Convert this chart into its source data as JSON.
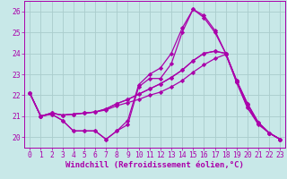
{
  "bg_color": "#c8e8e8",
  "grid_color": "#aacccc",
  "line_color": "#aa00aa",
  "marker": "D",
  "markersize": 2.2,
  "linewidth": 0.9,
  "xlabel": "Windchill (Refroidissement éolien,°C)",
  "xlabel_fontsize": 6.5,
  "tick_fontsize": 5.8,
  "xlim": [
    -0.5,
    23.5
  ],
  "ylim": [
    19.5,
    26.5
  ],
  "yticks": [
    20,
    21,
    22,
    23,
    24,
    25,
    26
  ],
  "xticks": [
    0,
    1,
    2,
    3,
    4,
    5,
    6,
    7,
    8,
    9,
    10,
    11,
    12,
    13,
    14,
    15,
    16,
    17,
    18,
    19,
    20,
    21,
    22,
    23
  ],
  "series": [
    [
      22.1,
      21.0,
      21.1,
      20.8,
      20.3,
      20.3,
      20.3,
      19.9,
      20.3,
      20.6,
      22.4,
      22.8,
      22.8,
      23.5,
      25.0,
      26.1,
      25.7,
      25.0,
      24.0,
      22.6,
      21.4,
      20.6,
      20.2,
      19.9
    ],
    [
      22.1,
      21.0,
      21.1,
      20.8,
      20.3,
      20.3,
      20.3,
      19.9,
      20.3,
      20.8,
      22.5,
      23.0,
      23.3,
      24.0,
      25.2,
      26.1,
      25.8,
      25.1,
      24.0,
      22.7,
      21.4,
      20.7,
      20.2,
      19.9
    ],
    [
      22.1,
      21.0,
      21.15,
      21.05,
      21.1,
      21.15,
      21.2,
      21.3,
      21.5,
      21.65,
      21.8,
      22.0,
      22.15,
      22.4,
      22.7,
      23.1,
      23.45,
      23.75,
      23.95,
      22.65,
      21.55,
      20.65,
      20.2,
      19.9
    ],
    [
      22.1,
      21.0,
      21.15,
      21.05,
      21.1,
      21.15,
      21.2,
      21.35,
      21.6,
      21.8,
      22.05,
      22.3,
      22.55,
      22.85,
      23.2,
      23.65,
      24.0,
      24.1,
      24.0,
      22.7,
      21.6,
      20.7,
      20.2,
      19.9
    ],
    [
      22.1,
      21.0,
      21.15,
      21.05,
      21.1,
      21.15,
      21.2,
      21.35,
      21.6,
      21.8,
      22.05,
      22.3,
      22.55,
      22.85,
      23.2,
      23.65,
      24.0,
      24.1,
      24.0,
      22.7,
      21.6,
      20.7,
      20.2,
      19.9
    ]
  ]
}
